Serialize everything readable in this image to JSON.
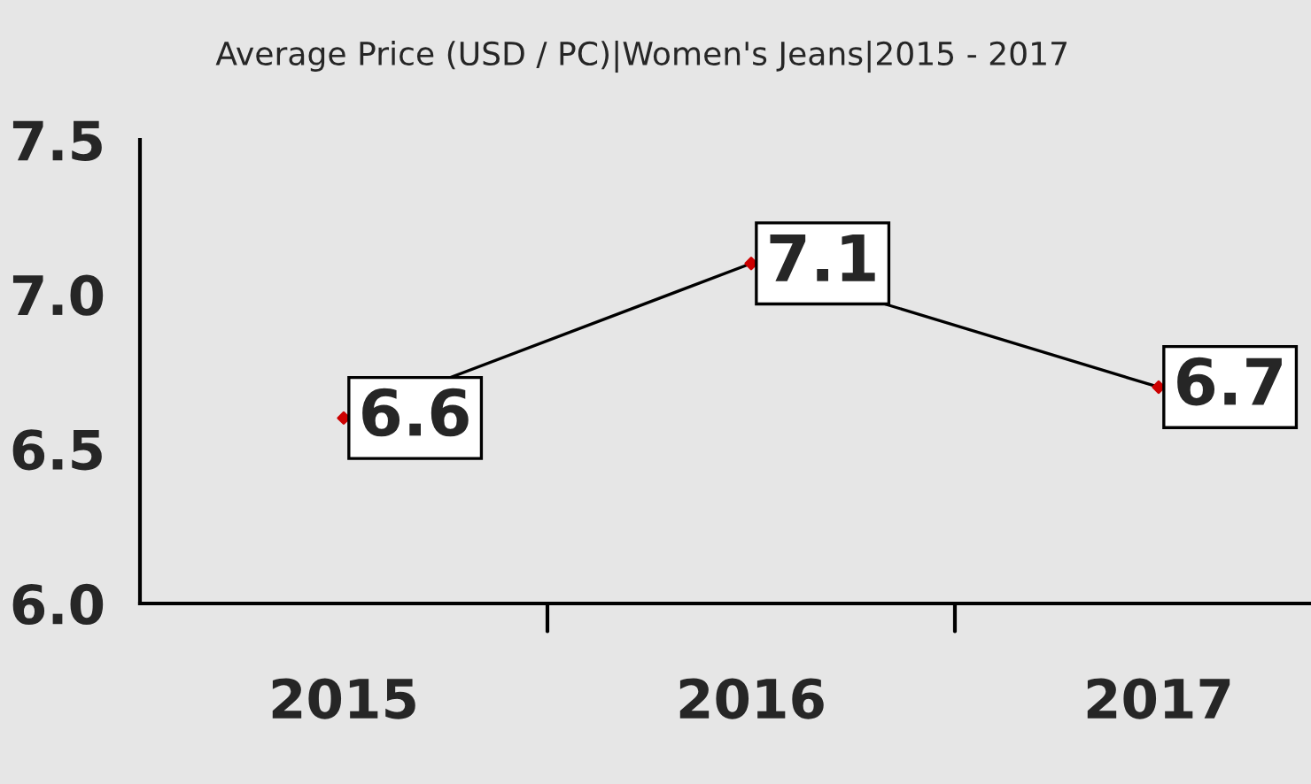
{
  "chart_data": {
    "type": "line",
    "title": "Average Price (USD / PC)|Women's Jeans|2015 - 2017",
    "categories": [
      "2015",
      "2016",
      "2017"
    ],
    "series": [
      {
        "color": "#000000",
        "values": [
          6.6,
          7.1,
          6.7
        ]
      }
    ],
    "marker": "diamond",
    "data_labels": true,
    "grid": false,
    "legend": false,
    "ylim": [
      6.0,
      7.5
    ],
    "yticks": [
      {
        "value": 6.0,
        "label": "6.0"
      },
      6.5,
      {
        "value": 7.0,
        "label": "7.0"
      },
      7.5
    ]
  }
}
